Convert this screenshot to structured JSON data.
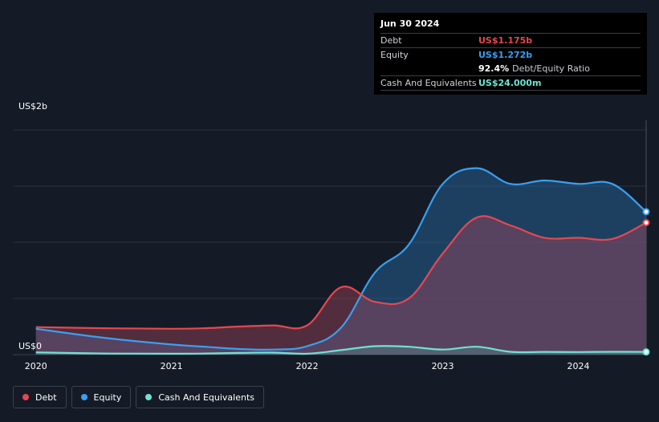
{
  "tooltip": {
    "date": "Jun 30 2024",
    "debt_label": "Debt",
    "debt_value": "US$1.175b",
    "equity_label": "Equity",
    "equity_value": "US$1.272b",
    "ratio_value": "92.4%",
    "ratio_label": "Debt/Equity Ratio",
    "cash_label": "Cash And Equivalents",
    "cash_value": "US$24.000m"
  },
  "legend": {
    "debt": "Debt",
    "equity": "Equity",
    "cash": "Cash And Equivalents"
  },
  "colors": {
    "background": "#151b26",
    "debt": "#e8474f",
    "equity": "#3a9ff0",
    "cash": "#6fe3d3",
    "grid": "#2b313c"
  },
  "chart_data": {
    "type": "area",
    "title": "",
    "y_unit": "US$ billions",
    "ylim": [
      0,
      2
    ],
    "y_tick_labels": [
      {
        "value": 2,
        "label": "US$2b"
      },
      {
        "value": 0,
        "label": "US$0"
      }
    ],
    "x_tick_labels": [
      {
        "value": 2020.0,
        "label": "2020"
      },
      {
        "value": 2021.0,
        "label": "2021"
      },
      {
        "value": 2022.0,
        "label": "2022"
      },
      {
        "value": 2023.0,
        "label": "2023"
      },
      {
        "value": 2024.0,
        "label": "2024"
      }
    ],
    "xlim": [
      2019.83,
      2024.5
    ],
    "series": [
      {
        "name": "Debt",
        "key": "debt",
        "x": [
          2020.0,
          2020.5,
          2021.0,
          2021.25,
          2021.5,
          2021.75,
          2022.0,
          2022.25,
          2022.5,
          2022.75,
          2023.0,
          2023.25,
          2023.5,
          2023.75,
          2024.0,
          2024.25,
          2024.5
        ],
        "values": [
          0.245,
          0.235,
          0.23,
          0.235,
          0.25,
          0.26,
          0.26,
          0.6,
          0.47,
          0.5,
          0.9,
          1.22,
          1.15,
          1.04,
          1.04,
          1.03,
          1.175
        ]
      },
      {
        "name": "Equity",
        "key": "equity",
        "x": [
          2020.0,
          2020.5,
          2021.0,
          2021.25,
          2021.5,
          2021.75,
          2022.0,
          2022.25,
          2022.5,
          2022.75,
          2023.0,
          2023.25,
          2023.5,
          2023.75,
          2024.0,
          2024.25,
          2024.5
        ],
        "values": [
          0.23,
          0.15,
          0.09,
          0.07,
          0.05,
          0.045,
          0.075,
          0.24,
          0.73,
          0.98,
          1.52,
          1.66,
          1.52,
          1.55,
          1.52,
          1.52,
          1.272
        ]
      },
      {
        "name": "Cash And Equivalents",
        "key": "cash",
        "x": [
          2020.0,
          2020.5,
          2021.0,
          2021.25,
          2021.5,
          2021.75,
          2022.0,
          2022.25,
          2022.5,
          2022.75,
          2023.0,
          2023.25,
          2023.5,
          2023.75,
          2024.0,
          2024.25,
          2024.5
        ],
        "values": [
          0.02,
          0.01,
          0.008,
          0.01,
          0.015,
          0.018,
          0.008,
          0.04,
          0.075,
          0.07,
          0.045,
          0.07,
          0.025,
          0.024,
          0.023,
          0.025,
          0.024
        ]
      }
    ],
    "grid": true,
    "legend_position": "bottom-left"
  }
}
